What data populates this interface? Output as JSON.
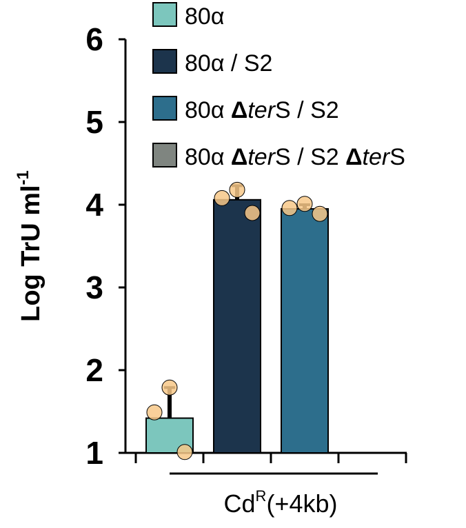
{
  "chart_data": {
    "type": "bar",
    "ylabel": "Log TrU ml",
    "ylabel_sup": "-1",
    "xlabel": "Cd",
    "xlabel_sup": "R",
    "xlabel_suffix": "(+4kb)",
    "ylim": [
      1,
      6
    ],
    "yticks": [
      "1",
      "2",
      "3",
      "4",
      "5",
      "6"
    ],
    "legend_placement": "top",
    "series": [
      {
        "legend": [
          {
            "text": "80α"
          }
        ],
        "color": "#7cc6bd",
        "value": 1.42,
        "error": 0.37,
        "points": [
          1.49,
          1.79,
          1.01
        ]
      },
      {
        "legend": [
          {
            "text": "80α / S2"
          }
        ],
        "color": "#1c344c",
        "value": 4.06,
        "error": 0.17,
        "points": [
          4.08,
          4.18,
          3.9
        ]
      },
      {
        "legend": [
          {
            "text": "80α "
          },
          {
            "text": "Δ",
            "bold": true
          },
          {
            "text": "ter",
            "italic": true
          },
          {
            "text": "S / S2"
          }
        ],
        "color": "#2d6e8c",
        "value": 3.95,
        "error": 0.05,
        "points": [
          3.96,
          4.01,
          3.89
        ]
      },
      {
        "legend": [
          {
            "text": "80α "
          },
          {
            "text": "Δ",
            "bold": true
          },
          {
            "text": "ter",
            "italic": true
          },
          {
            "text": "S / S2 "
          },
          {
            "text": "Δ",
            "bold": true
          },
          {
            "text": "ter",
            "italic": true
          },
          {
            "text": "S"
          }
        ],
        "color": "#7f8580",
        "value": null,
        "error": null,
        "points": []
      }
    ],
    "point_color": "#f7c888"
  }
}
